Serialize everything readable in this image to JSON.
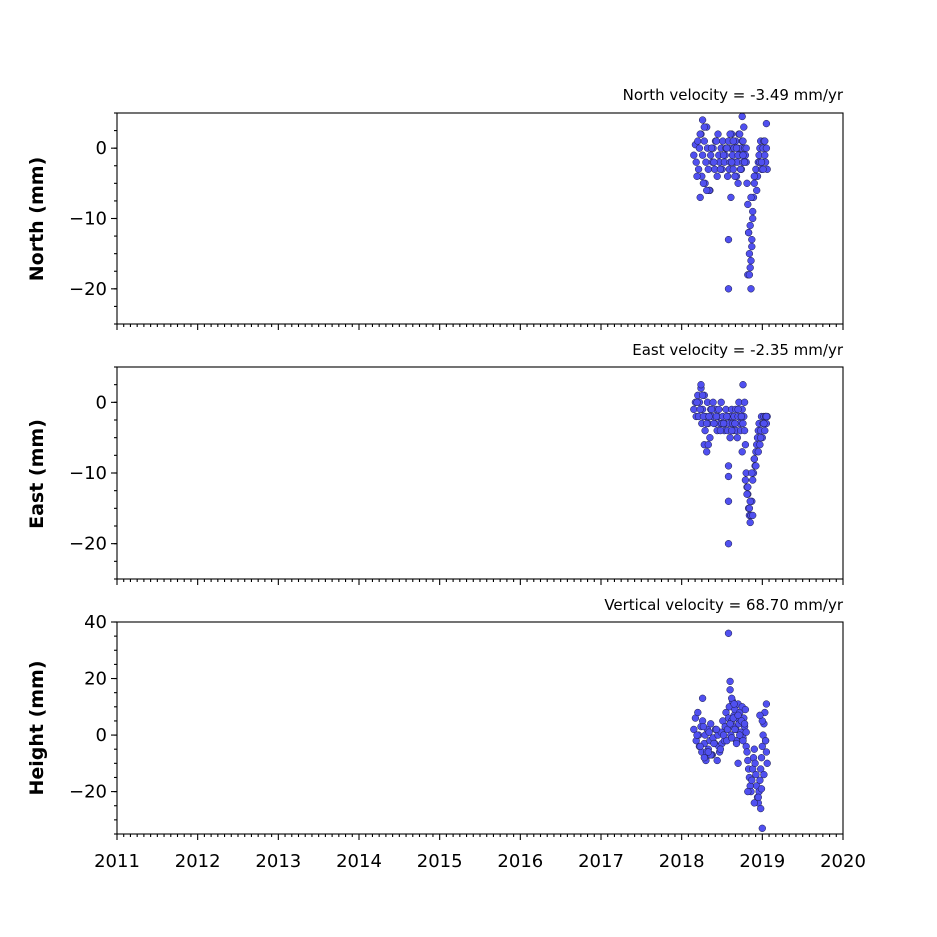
{
  "colors": {
    "marker_fill": "#5050f0",
    "marker_edge": "#1a1a40",
    "axes": "#000000",
    "background": "#ffffff"
  },
  "chart_data": [
    {
      "type": "scatter",
      "title": "North velocity = -3.49 mm/yr",
      "ylabel": "North (mm)",
      "xlim": [
        2011,
        2020
      ],
      "ylim": [
        -25,
        5
      ],
      "yticks": [
        0,
        -10,
        -20
      ],
      "ytick_labels": [
        "0",
        "−10",
        "−20"
      ],
      "xtick_labels": [],
      "grid": false,
      "x": [
        2018.15,
        2018.17,
        2018.18,
        2018.2,
        2018.21,
        2018.22,
        2018.24,
        2018.25,
        2018.26,
        2018.28,
        2018.29,
        2018.3,
        2018.32,
        2018.33,
        2018.35,
        2018.36,
        2018.38,
        2018.39,
        2018.41,
        2018.42,
        2018.44,
        2018.45,
        2018.46,
        2018.47,
        2018.49,
        2018.5,
        2018.51,
        2018.53,
        2018.54,
        2018.55,
        2018.57,
        2018.58,
        2018.59,
        2018.6,
        2018.61,
        2018.62,
        2018.63,
        2018.64,
        2018.65,
        2018.66,
        2018.67,
        2018.68,
        2018.69,
        2018.7,
        2018.71,
        2018.72,
        2018.73,
        2018.74,
        2018.75,
        2018.76,
        2018.77,
        2018.78,
        2018.79,
        2018.8,
        2018.81,
        2018.82,
        2018.83,
        2018.84,
        2018.85,
        2018.86,
        2018.87,
        2018.88,
        2018.89,
        2018.9,
        2018.91,
        2018.92,
        2018.93,
        2018.94,
        2018.95,
        2018.96,
        2018.97,
        2018.98,
        2018.99,
        2019.0,
        2019.01,
        2019.02,
        2019.03,
        2019.04,
        2019.05,
        2019.06,
        2018.19,
        2018.23,
        2018.27,
        2018.31,
        2018.34,
        2018.37,
        2018.4,
        2018.43,
        2018.48,
        2018.52,
        2018.56,
        2018.6,
        2018.62,
        2018.64,
        2018.66,
        2018.68,
        2018.7,
        2018.72,
        2018.74,
        2018.76,
        2018.78,
        2018.8,
        2018.58,
        2018.58,
        2018.75,
        2018.82,
        2018.86,
        2018.84,
        2018.87,
        2018.85,
        2018.83,
        2018.88,
        2018.86,
        2018.9,
        2018.97,
        2019.03,
        2019.05,
        2018.99,
        2019.01,
        2018.26,
        2018.28,
        2018.31,
        2018.23,
        2018.61,
        2018.7,
        2018.73,
        2018.76
      ],
      "y": [
        -1,
        0.5,
        -2,
        1,
        -3,
        0,
        2,
        -4,
        -1,
        1,
        -5,
        -2,
        0,
        -3,
        -6,
        -1,
        -2,
        0,
        -3,
        1,
        -4,
        2,
        -1,
        -2,
        0,
        -3,
        1,
        -2,
        -1,
        0,
        -4,
        1,
        -3,
        -2,
        0,
        2,
        -1,
        -3,
        0,
        -2,
        1,
        -4,
        -2,
        0,
        2,
        -1,
        -3,
        0,
        1,
        -2,
        3,
        0,
        -1,
        -2,
        -5,
        -8,
        -12,
        -15,
        -17,
        -16,
        -13,
        -9,
        -7,
        -5,
        -4,
        -3,
        -6,
        -4,
        -2,
        -1,
        0,
        1,
        -3,
        -2,
        0,
        1,
        -1,
        -2,
        0,
        -3,
        -4,
        2,
        -5,
        3,
        -6,
        0,
        -2,
        1,
        -3,
        -1,
        0,
        2,
        -2,
        1,
        -4,
        0,
        -1,
        2,
        -3,
        1,
        -2,
        0,
        -13,
        -20,
        4.5,
        -18,
        -20,
        -18,
        -14,
        -11,
        -12,
        -10,
        -7,
        -4,
        -2,
        1,
        3.5,
        -2,
        -3,
        4,
        3,
        -6,
        -7,
        -7,
        -5,
        -3,
        -1
      ],
      "annotations": []
    },
    {
      "type": "scatter",
      "title": "East velocity = -2.35 mm/yr",
      "ylabel": "East (mm)",
      "xlim": [
        2011,
        2020
      ],
      "ylim": [
        -25,
        5
      ],
      "yticks": [
        0,
        -10,
        -20
      ],
      "ytick_labels": [
        "0",
        "−10",
        "−20"
      ],
      "xtick_labels": [],
      "grid": false,
      "x": [
        2018.15,
        2018.17,
        2018.18,
        2018.2,
        2018.21,
        2018.22,
        2018.24,
        2018.25,
        2018.26,
        2018.28,
        2018.29,
        2018.3,
        2018.32,
        2018.33,
        2018.35,
        2018.36,
        2018.38,
        2018.39,
        2018.41,
        2018.42,
        2018.44,
        2018.45,
        2018.46,
        2018.47,
        2018.49,
        2018.5,
        2018.51,
        2018.53,
        2018.54,
        2018.55,
        2018.57,
        2018.58,
        2018.59,
        2018.6,
        2018.61,
        2018.62,
        2018.63,
        2018.64,
        2018.65,
        2018.66,
        2018.67,
        2018.68,
        2018.69,
        2018.7,
        2018.71,
        2018.72,
        2018.73,
        2018.74,
        2018.75,
        2018.76,
        2018.77,
        2018.78,
        2018.79,
        2018.8,
        2018.81,
        2018.82,
        2018.83,
        2018.84,
        2018.85,
        2018.86,
        2018.87,
        2018.88,
        2018.89,
        2018.9,
        2018.91,
        2018.92,
        2018.93,
        2018.94,
        2018.95,
        2018.96,
        2018.97,
        2018.98,
        2018.99,
        2019.0,
        2019.01,
        2019.02,
        2019.03,
        2019.04,
        2019.05,
        2019.06,
        2018.19,
        2018.23,
        2018.27,
        2018.31,
        2018.34,
        2018.37,
        2018.4,
        2018.43,
        2018.48,
        2018.52,
        2018.56,
        2018.62,
        2018.66,
        2018.7,
        2018.74,
        2018.78,
        2018.58,
        2018.58,
        2018.58,
        2018.58,
        2018.75,
        2018.76,
        2018.79,
        2018.81,
        2018.84,
        2018.86,
        2018.82,
        2018.85,
        2018.88,
        2018.87,
        2018.9,
        2018.92,
        2018.95,
        2018.98,
        2019.02,
        2019.04,
        2019.05,
        2018.24,
        2018.26,
        2018.28,
        2018.31,
        2018.33
      ],
      "y": [
        -1,
        0,
        -2,
        1,
        -2,
        0,
        2,
        -3,
        -1,
        1,
        -4,
        -2,
        0,
        -3,
        -5,
        -1,
        -2,
        0,
        -3,
        -1,
        -4,
        -2,
        -1,
        -3,
        0,
        -3,
        -2,
        -4,
        -3,
        -1,
        -4,
        -2,
        -3,
        -5,
        -2,
        -1,
        -3,
        -4,
        -2,
        -3,
        -1,
        -4,
        -5,
        -2,
        0,
        -3,
        -4,
        -2,
        -1,
        -3,
        -2,
        -4,
        -6,
        -10,
        -12,
        -13,
        -15,
        -16,
        -17,
        -16,
        -14,
        -11,
        -10,
        -8,
        -9,
        -7,
        -6,
        -5,
        -4,
        -3,
        -6,
        -4,
        -2,
        -5,
        -3,
        -2,
        -4,
        -2,
        -3,
        -2,
        0,
        -1,
        -2,
        -3,
        -2,
        -1,
        -3,
        -2,
        -4,
        -3,
        -2,
        -4,
        -3,
        -1,
        -2,
        0,
        -9,
        -10.5,
        -14,
        -20,
        -7,
        2.5,
        -11,
        -13,
        -15,
        -16,
        -12,
        -14,
        -16,
        -10,
        -8,
        -9,
        -7,
        -5,
        -3,
        -2,
        -2,
        2.5,
        1,
        -6,
        -7,
        -6
      ],
      "annotations": []
    },
    {
      "type": "scatter",
      "title": "Vertical velocity = 68.70 mm/yr",
      "ylabel": "Height (mm)",
      "xlim": [
        2011,
        2020
      ],
      "ylim": [
        -35,
        40
      ],
      "yticks": [
        40,
        20,
        0,
        -20
      ],
      "ytick_labels": [
        "40",
        "20",
        "0",
        "−20"
      ],
      "xtick_labels": [
        "2011",
        "2012",
        "2013",
        "2014",
        "2015",
        "2016",
        "2017",
        "2018",
        "2019",
        "2020"
      ],
      "grid": false,
      "x": [
        2018.15,
        2018.17,
        2018.18,
        2018.2,
        2018.21,
        2018.22,
        2018.24,
        2018.25,
        2018.26,
        2018.28,
        2018.29,
        2018.3,
        2018.32,
        2018.33,
        2018.35,
        2018.36,
        2018.38,
        2018.39,
        2018.41,
        2018.42,
        2018.44,
        2018.45,
        2018.46,
        2018.47,
        2018.49,
        2018.5,
        2018.51,
        2018.53,
        2018.54,
        2018.55,
        2018.57,
        2018.58,
        2018.59,
        2018.6,
        2018.61,
        2018.62,
        2018.63,
        2018.64,
        2018.65,
        2018.66,
        2018.67,
        2018.68,
        2018.69,
        2018.7,
        2018.71,
        2018.72,
        2018.73,
        2018.74,
        2018.75,
        2018.76,
        2018.77,
        2018.78,
        2018.79,
        2018.8,
        2018.81,
        2018.82,
        2018.83,
        2018.84,
        2018.85,
        2018.86,
        2018.87,
        2018.88,
        2018.89,
        2018.9,
        2018.91,
        2018.92,
        2018.93,
        2018.94,
        2018.95,
        2018.96,
        2018.97,
        2018.98,
        2018.99,
        2019.0,
        2019.01,
        2019.02,
        2019.03,
        2019.04,
        2019.05,
        2019.06,
        2018.19,
        2018.23,
        2018.27,
        2018.31,
        2018.34,
        2018.37,
        2018.4,
        2018.43,
        2018.48,
        2018.52,
        2018.56,
        2018.6,
        2018.62,
        2018.64,
        2018.66,
        2018.68,
        2018.7,
        2018.72,
        2018.74,
        2018.76,
        2018.78,
        2018.8,
        2018.58,
        2018.6,
        2018.6,
        2018.62,
        2018.65,
        2018.7,
        2018.82,
        2018.9,
        2018.95,
        2018.98,
        2019.0,
        2019.02,
        2019.04,
        2019.05,
        2019.0,
        2018.97,
        2018.99,
        2018.26,
        2018.3,
        2018.28,
        2018.36,
        2018.33
      ],
      "y": [
        2,
        6,
        -2,
        8,
        0,
        -4,
        3,
        -6,
        5,
        -3,
        0,
        -8,
        2,
        -5,
        -2,
        4,
        -7,
        -1,
        -3,
        2,
        -9,
        0,
        -4,
        -6,
        1,
        -3,
        5,
        -2,
        3,
        8,
        2,
        6,
        10,
        4,
        0,
        5,
        12,
        3,
        7,
        9,
        2,
        -2,
        6,
        11,
        4,
        8,
        1,
        5,
        10,
        -1,
        6,
        3,
        9,
        -4,
        -6,
        -9,
        -12,
        -15,
        -18,
        -20,
        -16,
        -12,
        -8,
        -5,
        -10,
        -14,
        -18,
        -22,
        -24,
        -20,
        -16,
        -12,
        -8,
        -4,
        0,
        4,
        8,
        -2,
        -6,
        -10,
        0,
        -4,
        3,
        -6,
        1,
        -7,
        -3,
        2,
        -5,
        0,
        -2,
        4,
        -1,
        6,
        2,
        -3,
        7,
        0,
        5,
        -2,
        4,
        1,
        36,
        19,
        16,
        13,
        11,
        -10,
        -20,
        -24,
        -22,
        -26,
        -33,
        -14,
        -2,
        11,
        5,
        7,
        -19,
        13,
        -9,
        -8,
        -7,
        -6
      ],
      "annotations": []
    }
  ]
}
